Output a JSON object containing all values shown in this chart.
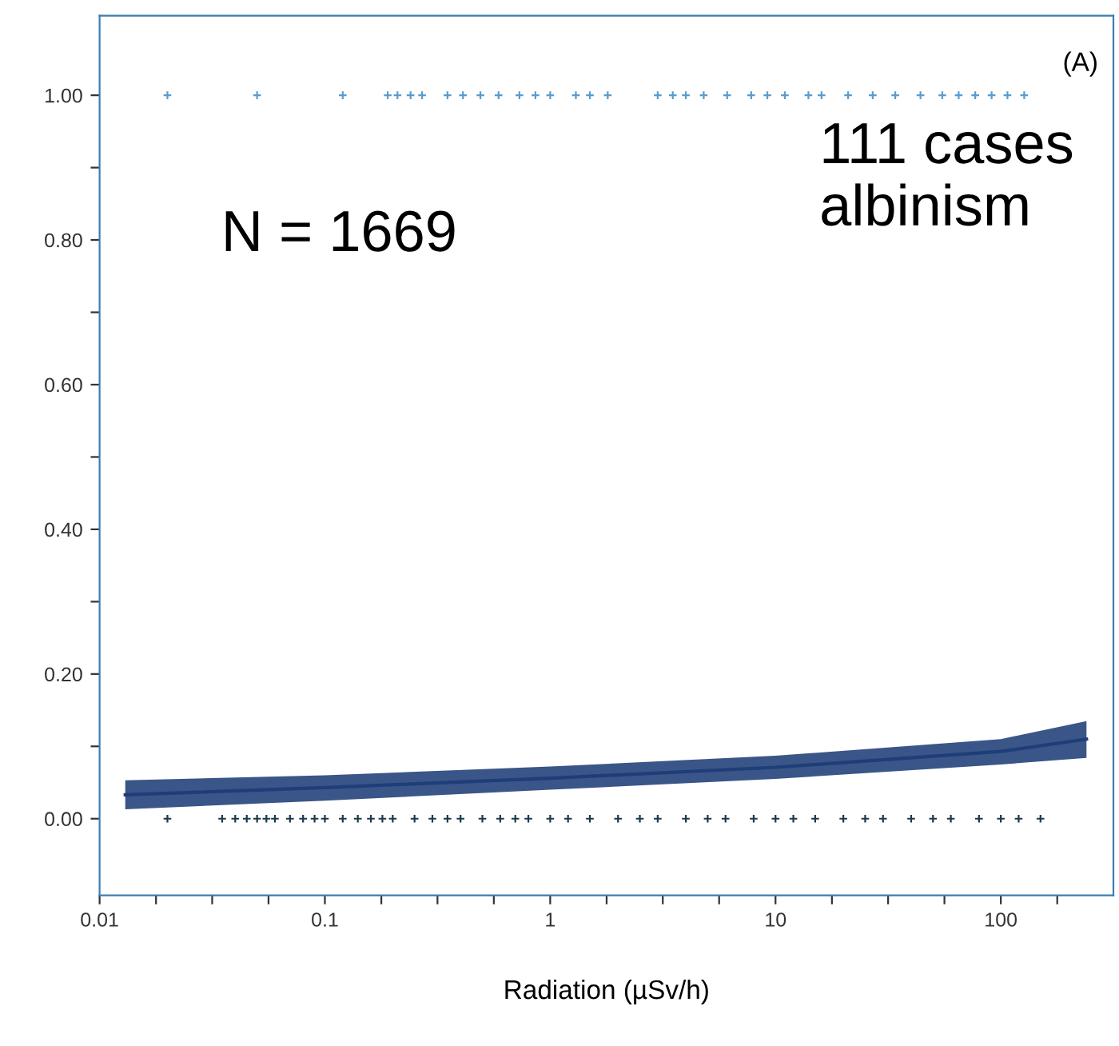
{
  "chart_data": {
    "type": "scatter",
    "xlabel": "Radiation (µSv/h)",
    "log": "x",
    "grid": false,
    "legend": false,
    "annotations": [
      "N = 1669",
      "111 cases\nalbinism",
      "(A)"
    ],
    "xlim": [
      0.01,
      316
    ],
    "ylim": [
      -0.106,
      1.11
    ],
    "xticks": [
      0.01,
      {
        "value": 0.0178,
        "label": null
      },
      {
        "value": 0.0316,
        "label": null
      },
      {
        "value": 0.0562,
        "label": null
      },
      0.1,
      {
        "value": 0.178,
        "label": null
      },
      {
        "value": 0.316,
        "label": null
      },
      {
        "value": 0.562,
        "label": null
      },
      1,
      {
        "value": 1.78,
        "label": null
      },
      {
        "value": 3.16,
        "label": null
      },
      {
        "value": 5.62,
        "label": null
      },
      10,
      {
        "value": 17.8,
        "label": null
      },
      {
        "value": 31.6,
        "label": null
      },
      {
        "value": 56.2,
        "label": null
      },
      100,
      {
        "value": 178,
        "label": null
      }
    ],
    "yticks": [
      {
        "value": 0,
        "label": "0.00"
      },
      {
        "value": 0.1,
        "label": null
      },
      {
        "value": 0.2,
        "label": "0.20"
      },
      {
        "value": 0.3,
        "label": null
      },
      {
        "value": 0.4,
        "label": "0.40"
      },
      {
        "value": 0.5,
        "label": null
      },
      {
        "value": 0.6,
        "label": "0.60"
      },
      {
        "value": 0.7,
        "label": null
      },
      {
        "value": 0.8,
        "label": "0.80"
      },
      {
        "value": 0.9,
        "label": null
      },
      {
        "value": 1,
        "label": "1.00"
      }
    ],
    "series": [
      {
        "marker": "cross",
        "color": "#5a9ccc",
        "x": [
          0.02,
          0.05,
          0.12,
          0.19,
          0.21,
          0.24,
          0.27,
          0.35,
          0.41,
          0.49,
          0.59,
          0.73,
          0.86,
          1.0,
          1.3,
          1.5,
          1.8,
          3.0,
          3.5,
          4.0,
          4.8,
          6.1,
          7.8,
          9.2,
          11,
          14,
          16,
          21,
          27,
          34,
          44,
          55,
          65,
          77,
          91,
          107,
          127
        ],
        "values": [
          1,
          1,
          1,
          1,
          1,
          1,
          1,
          1,
          1,
          1,
          1,
          1,
          1,
          1,
          1,
          1,
          1,
          1,
          1,
          1,
          1,
          1,
          1,
          1,
          1,
          1,
          1,
          1,
          1,
          1,
          1,
          1,
          1,
          1,
          1,
          1,
          1
        ]
      },
      {
        "marker": "cross",
        "color": "#1c3a4c",
        "x": [
          0.02,
          0.035,
          0.04,
          0.045,
          0.05,
          0.055,
          0.06,
          0.07,
          0.08,
          0.09,
          0.1,
          0.12,
          0.14,
          0.16,
          0.18,
          0.2,
          0.25,
          0.3,
          0.35,
          0.4,
          0.5,
          0.6,
          0.7,
          0.8,
          1.0,
          1.2,
          1.5,
          2,
          2.5,
          3,
          4,
          5,
          6,
          8,
          10,
          12,
          15,
          20,
          25,
          30,
          40,
          50,
          60,
          80,
          100,
          120,
          150
        ],
        "values": [
          0,
          0,
          0,
          0,
          0,
          0,
          0,
          0,
          0,
          0,
          0,
          0,
          0,
          0,
          0,
          0,
          0,
          0,
          0,
          0,
          0,
          0,
          0,
          0,
          0,
          0,
          0,
          0,
          0,
          0,
          0,
          0,
          0,
          0,
          0,
          0,
          0,
          0,
          0,
          0,
          0,
          0,
          0,
          0,
          0,
          0,
          0
        ]
      },
      {
        "type": "line",
        "marker": "none",
        "color": "#1f3d78",
        "x": [
          0.013,
          0.1,
          1,
          10,
          100,
          240
        ],
        "values": [
          0.033,
          0.043,
          0.056,
          0.071,
          0.093,
          0.11
        ],
        "lower": [
          0.013,
          0.025,
          0.04,
          0.055,
          0.075,
          0.084
        ],
        "upper": [
          0.053,
          0.06,
          0.072,
          0.087,
          0.11,
          0.135
        ]
      }
    ]
  }
}
